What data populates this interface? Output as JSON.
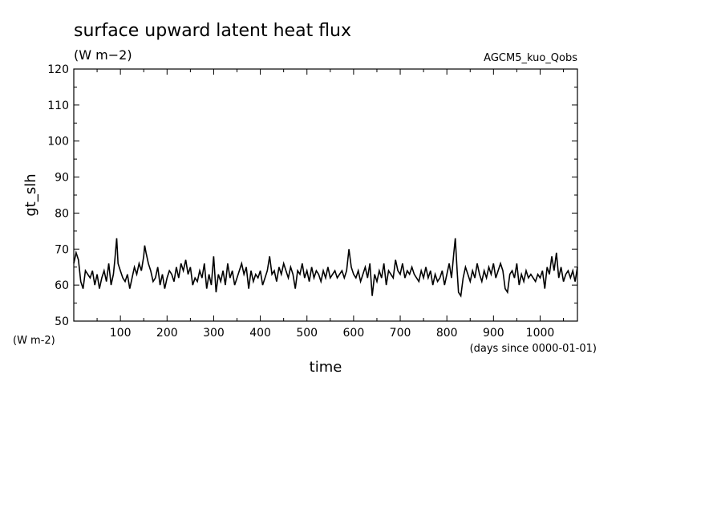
{
  "chart_data": {
    "type": "line",
    "title": "surface upward latent heat flux",
    "subtitle": "(W m−2)",
    "experiment": "AGCM5_kuo_Qobs",
    "ylabel": "gt_slh",
    "yunit": "(W m-2)",
    "xlabel": "time",
    "xunit": "(days since 0000-01-01)",
    "xlim": [
      0,
      1080
    ],
    "ylim": [
      50,
      120
    ],
    "x_ticks": [
      100,
      200,
      300,
      400,
      500,
      600,
      700,
      800,
      900,
      1000
    ],
    "y_ticks": [
      50,
      60,
      70,
      80,
      90,
      100,
      110,
      120
    ],
    "grid": false,
    "color": "#000000",
    "series": [
      {
        "x": [
          0,
          5,
          10,
          15,
          20,
          25,
          30,
          35,
          40,
          45,
          50,
          55,
          60,
          65,
          70,
          75,
          80,
          85,
          88,
          92,
          95,
          100,
          105,
          110,
          115,
          120,
          125,
          130,
          135,
          140,
          145,
          150,
          152,
          155,
          160,
          165,
          170,
          175,
          180,
          185,
          190,
          195,
          200,
          205,
          210,
          215,
          220,
          225,
          230,
          235,
          240,
          245,
          250,
          255,
          260,
          265,
          270,
          275,
          280,
          285,
          290,
          295,
          300,
          305,
          310,
          315,
          320,
          325,
          330,
          335,
          340,
          345,
          350,
          355,
          360,
          365,
          370,
          375,
          380,
          385,
          390,
          395,
          400,
          405,
          410,
          415,
          420,
          425,
          430,
          435,
          440,
          445,
          450,
          455,
          460,
          465,
          470,
          475,
          480,
          485,
          490,
          495,
          500,
          505,
          510,
          515,
          520,
          525,
          530,
          535,
          540,
          545,
          550,
          555,
          560,
          565,
          570,
          575,
          580,
          585,
          590,
          595,
          600,
          605,
          610,
          615,
          620,
          625,
          630,
          635,
          640,
          645,
          650,
          655,
          660,
          665,
          670,
          675,
          680,
          685,
          690,
          695,
          700,
          705,
          710,
          715,
          720,
          725,
          730,
          735,
          740,
          745,
          750,
          755,
          760,
          765,
          770,
          775,
          780,
          785,
          790,
          795,
          800,
          805,
          810,
          815,
          818,
          822,
          825,
          830,
          835,
          840,
          845,
          850,
          855,
          860,
          865,
          870,
          875,
          880,
          885,
          890,
          895,
          900,
          905,
          910,
          915,
          920,
          925,
          930,
          935,
          940,
          945,
          950,
          955,
          960,
          965,
          970,
          975,
          980,
          985,
          990,
          995,
          1000,
          1005,
          1010,
          1015,
          1020,
          1025,
          1030,
          1035,
          1040,
          1045,
          1050,
          1055,
          1060,
          1065,
          1070,
          1075,
          1080
        ],
        "values": [
          66,
          69,
          67,
          61,
          59,
          64,
          63,
          62,
          64,
          60,
          63,
          59,
          62,
          64,
          61,
          66,
          60,
          63,
          67,
          73,
          66,
          64,
          62,
          61,
          63,
          59,
          62,
          65,
          63,
          66,
          64,
          68,
          71,
          69,
          66,
          64,
          61,
          62,
          65,
          60,
          63,
          59,
          62,
          64,
          63,
          61,
          65,
          62,
          66,
          64,
          67,
          63,
          65,
          60,
          62,
          61,
          64,
          62,
          66,
          59,
          63,
          60,
          68,
          58,
          63,
          61,
          64,
          60,
          66,
          62,
          64,
          60,
          62,
          64,
          66,
          63,
          65,
          59,
          64,
          61,
          63,
          62,
          64,
          60,
          62,
          64,
          68,
          63,
          64,
          61,
          65,
          63,
          66,
          64,
          62,
          65,
          63,
          59,
          64,
          63,
          66,
          62,
          64,
          61,
          65,
          62,
          64,
          63,
          61,
          64,
          62,
          65,
          62,
          63,
          64,
          62,
          63,
          64,
          62,
          64,
          70,
          65,
          63,
          62,
          64,
          61,
          63,
          65,
          62,
          66,
          57,
          63,
          61,
          64,
          62,
          66,
          60,
          64,
          63,
          62,
          67,
          64,
          63,
          66,
          62,
          64,
          63,
          65,
          63,
          62,
          61,
          64,
          62,
          65,
          62,
          64,
          60,
          63,
          61,
          62,
          64,
          60,
          63,
          66,
          62,
          69,
          73,
          64,
          58,
          57,
          62,
          65,
          63,
          61,
          64,
          62,
          66,
          63,
          61,
          64,
          62,
          65,
          63,
          66,
          62,
          64,
          66,
          64,
          59,
          58,
          63,
          64,
          62,
          66,
          60,
          63,
          61,
          64,
          62,
          63,
          62,
          61,
          63,
          62,
          64,
          59,
          65,
          63,
          68,
          64,
          69,
          62,
          65,
          61,
          63,
          64,
          62,
          64,
          61,
          65
        ]
      }
    ]
  }
}
